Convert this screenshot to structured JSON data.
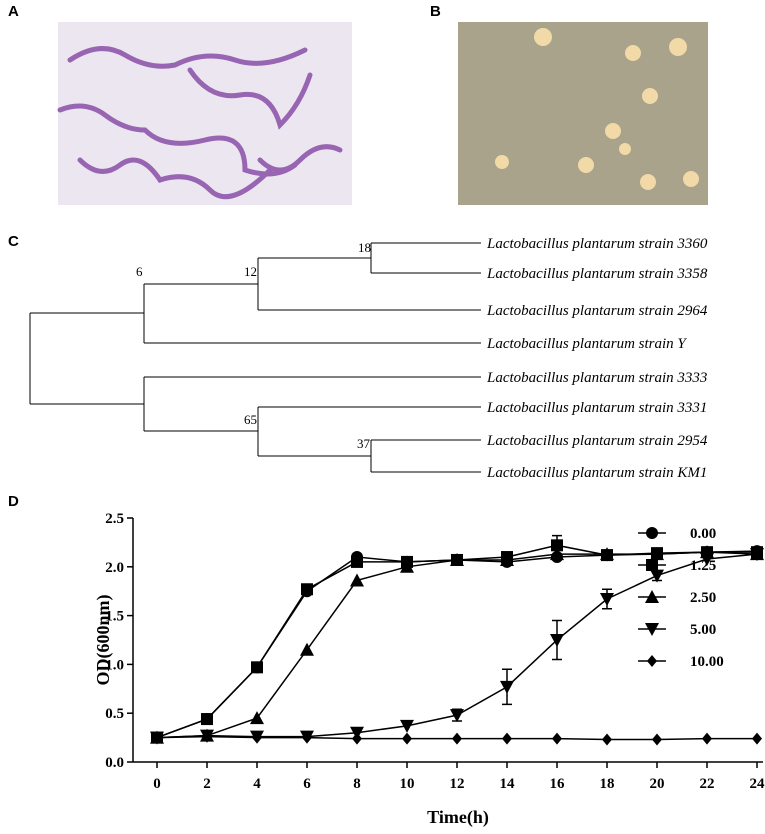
{
  "panel_labels": [
    "A",
    "B",
    "C",
    "D"
  ],
  "tree": {
    "leaves": [
      "Lactobacillus plantarum strain 3360",
      "Lactobacillus plantarum strain 3358",
      "Lactobacillus plantarum strain 2964",
      "Lactobacillus plantarum strain Y",
      "Lactobacillus plantarum strain 3333",
      "Lactobacillus plantarum strain 3331",
      "Lactobacillus plantarum strain 2954",
      "Lactobacillus plantarum strain KM1"
    ],
    "node_labels": [
      "18",
      "12",
      "6",
      "65",
      "37"
    ]
  },
  "chart_data": {
    "type": "line",
    "x_label": "Time(h)",
    "y_label": "OD(600nm)",
    "x": [
      0,
      2,
      4,
      6,
      8,
      10,
      12,
      14,
      16,
      18,
      20,
      22,
      24
    ],
    "series": [
      {
        "name": "0.00",
        "color": "#000000",
        "marker": "circle",
        "values": [
          0.25,
          0.44,
          0.97,
          1.75,
          2.1,
          2.05,
          2.07,
          2.05,
          2.1,
          2.12,
          2.13,
          2.15,
          2.16
        ]
      },
      {
        "name": "1.25",
        "color": "#000000",
        "marker": "square",
        "values": [
          0.25,
          0.44,
          0.97,
          1.77,
          2.05,
          2.05,
          2.07,
          2.1,
          2.22,
          2.12,
          2.14,
          2.15,
          2.15
        ],
        "errors": [
          null,
          null,
          0.05,
          null,
          null,
          null,
          null,
          null,
          0.1,
          null,
          null,
          null,
          null
        ]
      },
      {
        "name": "2.50",
        "color": "#000000",
        "marker": "triangle",
        "values": [
          0.25,
          0.27,
          0.45,
          1.15,
          1.86,
          2.0,
          2.07,
          2.07,
          2.13,
          2.13,
          2.13,
          2.15,
          2.13
        ]
      },
      {
        "name": "5.00",
        "color": "#000000",
        "marker": "triangle-down",
        "values": [
          0.25,
          0.27,
          0.26,
          0.26,
          0.3,
          0.37,
          0.48,
          0.77,
          1.25,
          1.67,
          1.91,
          2.08,
          2.13
        ],
        "errors": [
          null,
          null,
          null,
          null,
          null,
          null,
          0.06,
          0.18,
          0.2,
          0.1,
          0.05,
          null,
          null
        ]
      },
      {
        "name": "10.00",
        "color": "#000000",
        "marker": "diamond",
        "values": [
          0.25,
          0.26,
          0.25,
          0.25,
          0.24,
          0.24,
          0.24,
          0.24,
          0.24,
          0.23,
          0.23,
          0.24,
          0.24
        ]
      }
    ],
    "xlim": [
      -0.96,
      24.24
    ],
    "ylim": [
      0,
      2.5
    ],
    "xticks": [
      0,
      2,
      4,
      6,
      8,
      10,
      12,
      14,
      16,
      18,
      20,
      22,
      24
    ],
    "yticks": [
      {
        "value": 0,
        "label": "0.0"
      },
      0.5,
      {
        "value": 1,
        "label": "1.0"
      },
      1.5,
      {
        "value": 2,
        "label": "2.0"
      },
      2.5
    ],
    "legend": "right",
    "grid": false
  }
}
